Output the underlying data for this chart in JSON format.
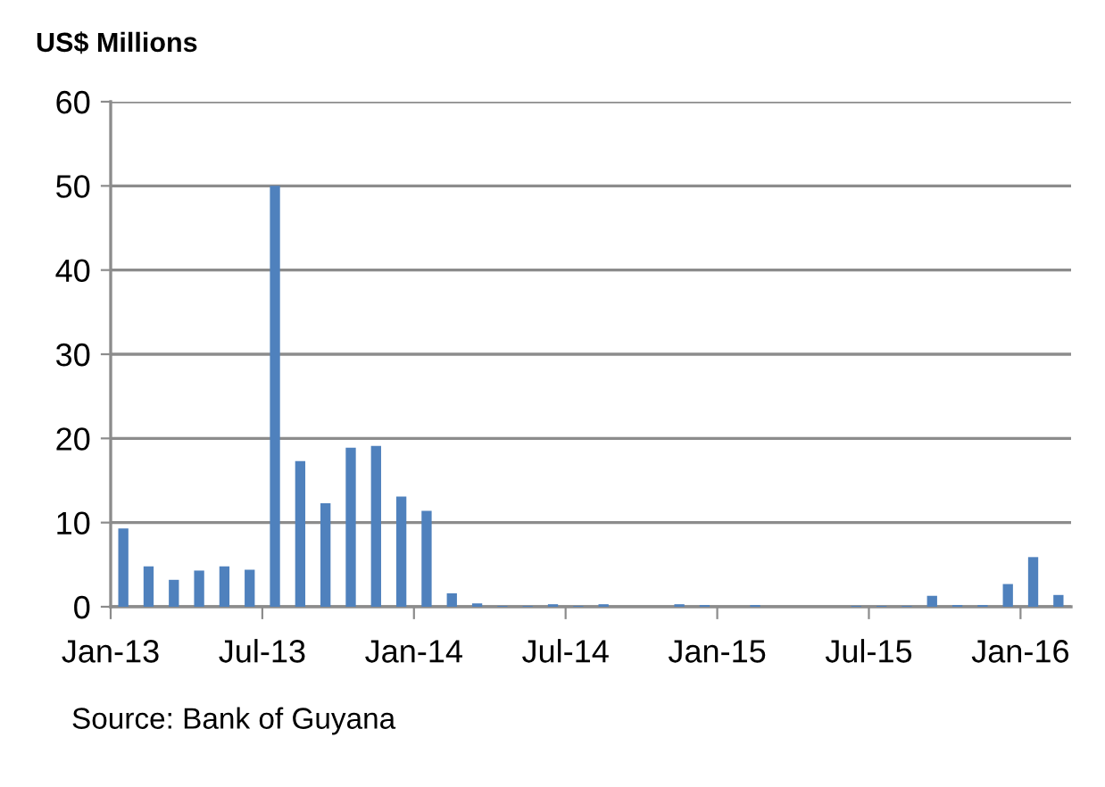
{
  "chart_data": {
    "type": "bar",
    "ylabel": "US$ Millions",
    "categories": [
      "Jan-13",
      null,
      null,
      null,
      null,
      null,
      "Jul-13",
      null,
      null,
      null,
      null,
      null,
      "Jan-14",
      null,
      null,
      null,
      null,
      null,
      "Jul-14",
      null,
      null,
      null,
      null,
      null,
      "Jan-15",
      null,
      null,
      null,
      null,
      null,
      "Jul-15",
      null,
      null,
      null,
      null,
      null,
      "Jan-16",
      null
    ],
    "values": [
      9.3,
      4.8,
      3.2,
      4.3,
      4.8,
      4.4,
      50,
      17.3,
      12.3,
      18.9,
      19.1,
      13.1,
      11.4,
      1.6,
      0.4,
      0.1,
      0.1,
      0.3,
      0.1,
      0.3,
      0,
      0,
      0.3,
      0.2,
      0,
      0.2,
      0,
      0,
      0,
      0.1,
      0.1,
      0.1,
      1.3,
      0.2,
      0.2,
      2.7,
      5.9,
      1.4
    ],
    "color": "#4f81bd",
    "ylim": [
      0,
      60
    ],
    "yticks": [
      0,
      10,
      20,
      30,
      40,
      50,
      60
    ],
    "grid": "y",
    "legend": false,
    "annotations": [
      "Source: Bank of Guyana"
    ]
  }
}
